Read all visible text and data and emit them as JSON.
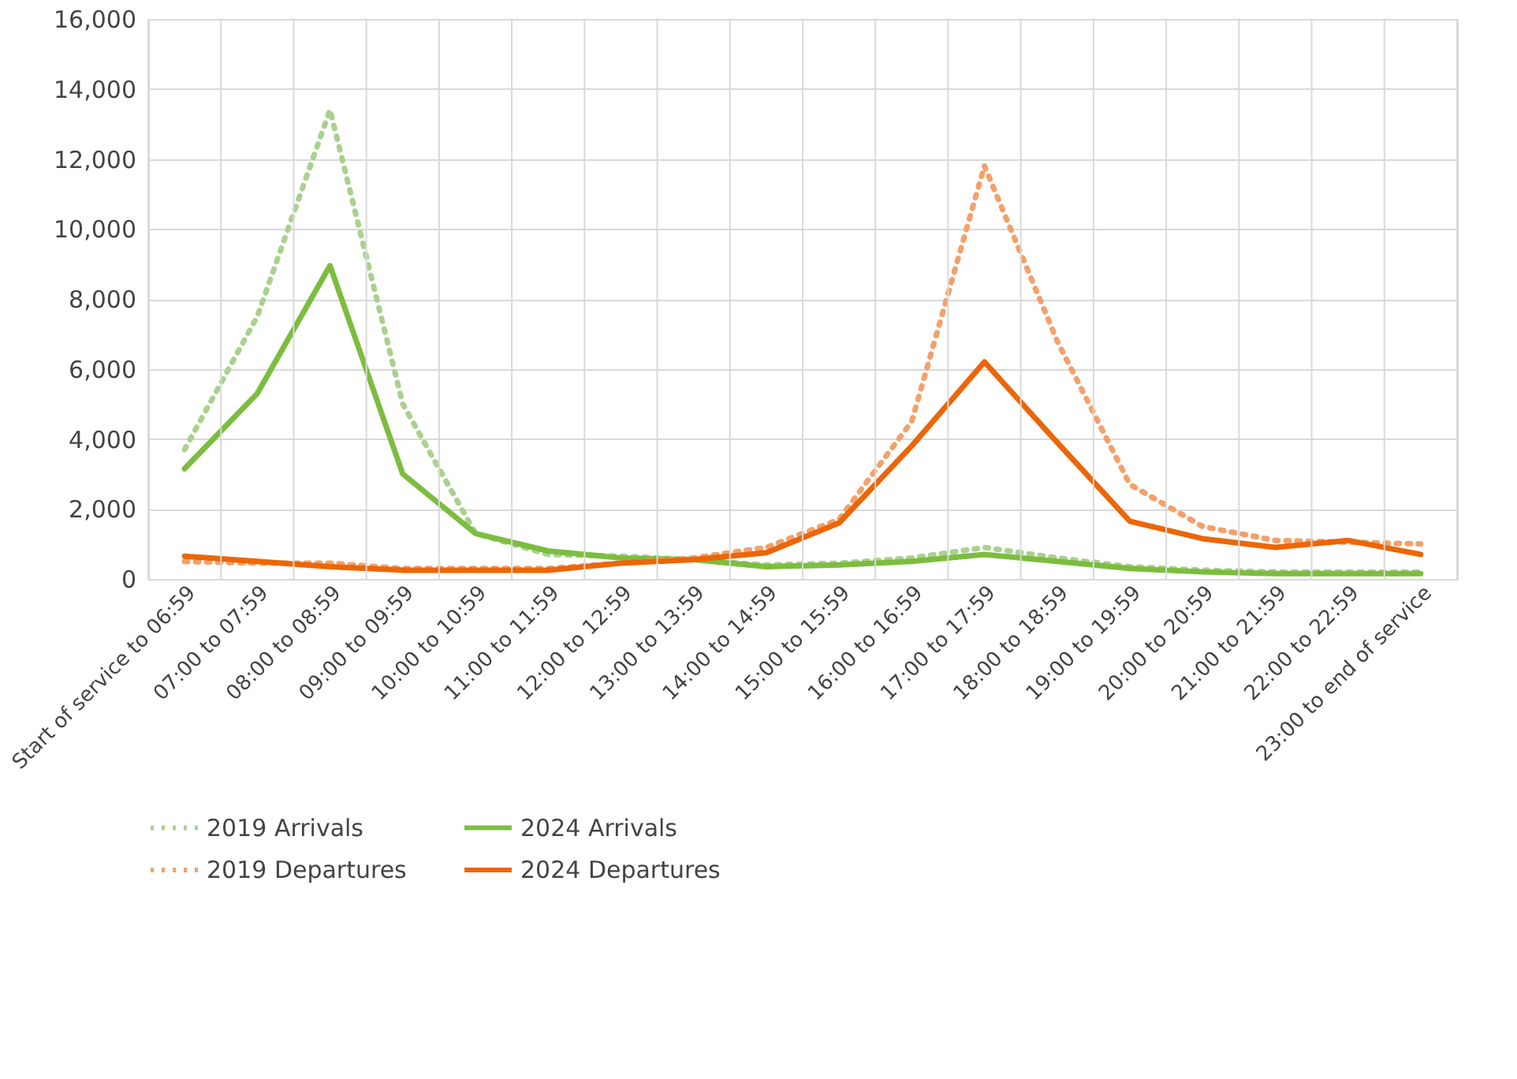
{
  "chart_data": {
    "type": "line",
    "categories": [
      "Start of service to 06:59",
      "07:00 to 07:59",
      "08:00 to 08:59",
      "09:00 to 09:59",
      "10:00 to 10:59",
      "11:00 to 11:59",
      "12:00 to 12:59",
      "13:00 to 13:59",
      "14:00 to 14:59",
      "15:00 to 15:59",
      "16:00 to 16:59",
      "17:00 to 17:59",
      "18:00 to 18:59",
      "19:00 to 19:59",
      "20:00 to 20:59",
      "21:00 to 21:59",
      "22:00 to 22:59",
      "23:00 to end of service"
    ],
    "series": [
      {
        "name": "2019 Arrivals",
        "color": "#a9d18e",
        "line_style": "dotted",
        "values": [
          3700,
          7500,
          13400,
          5000,
          1300,
          700,
          650,
          550,
          400,
          450,
          600,
          900,
          600,
          350,
          250,
          200,
          200,
          200
        ]
      },
      {
        "name": "2024 Arrivals",
        "color": "#7cbd3f",
        "line_style": "solid",
        "values": [
          3150,
          5300,
          8950,
          3000,
          1300,
          800,
          600,
          550,
          350,
          400,
          500,
          700,
          500,
          300,
          200,
          150,
          150,
          150
        ]
      },
      {
        "name": "2019 Departures",
        "color": "#f4a06a",
        "line_style": "dotted",
        "values": [
          500,
          450,
          450,
          300,
          300,
          300,
          450,
          600,
          900,
          1700,
          4500,
          11800,
          6800,
          2700,
          1500,
          1100,
          1050,
          1000
        ]
      },
      {
        "name": "2024 Departures",
        "color": "#ec6608",
        "line_style": "solid",
        "values": [
          650,
          500,
          350,
          250,
          250,
          250,
          450,
          550,
          750,
          1600,
          3800,
          6200,
          3900,
          1650,
          1150,
          900,
          1100,
          700
        ]
      }
    ],
    "ylim": [
      0,
      16000
    ],
    "yticks": [
      0,
      {
        "value": 2000,
        "label": "2,000"
      },
      {
        "value": 4000,
        "label": "4,000"
      },
      {
        "value": 6000,
        "label": "6,000"
      },
      {
        "value": 8000,
        "label": "8,000"
      },
      {
        "value": 10000,
        "label": "10,000"
      },
      {
        "value": 12000,
        "label": "12,000"
      },
      {
        "value": 14000,
        "label": "14,000"
      },
      {
        "value": 16000,
        "label": "16,000"
      }
    ],
    "grid": true,
    "legend": "bottom",
    "marker": "none"
  }
}
